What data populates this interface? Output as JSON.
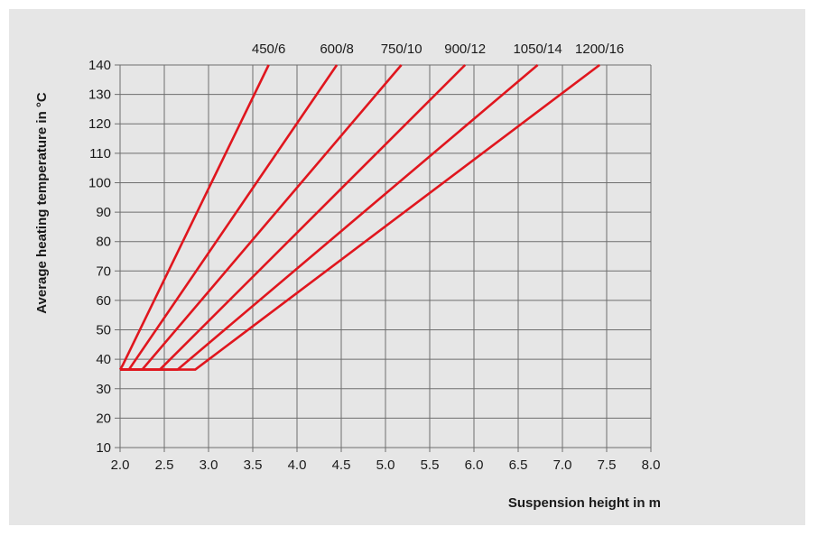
{
  "chart_data": {
    "type": "line",
    "title": "",
    "xlabel": "Suspension height in m",
    "ylabel": "Average heating temperature in °C",
    "xlim": [
      2.0,
      8.0
    ],
    "ylim": [
      10,
      140
    ],
    "x_ticks": [
      "2.0",
      "2.5",
      "3.0",
      "3.5",
      "4.0",
      "4.5",
      "5.0",
      "5.5",
      "6.0",
      "6.5",
      "7.0",
      "7.5",
      "8.0"
    ],
    "y_ticks": [
      "10",
      "20",
      "30",
      "40",
      "50",
      "60",
      "70",
      "80",
      "90",
      "100",
      "110",
      "120",
      "130",
      "140"
    ],
    "grid": true,
    "legend": "series labels above the plot at each line's top end",
    "series_color": "#e0161e",
    "series": [
      {
        "name": "450/6",
        "points": [
          [
            2.0,
            36.5
          ],
          [
            2.03,
            38
          ],
          [
            3.68,
            140
          ]
        ]
      },
      {
        "name": "600/8",
        "points": [
          [
            2.0,
            36.5
          ],
          [
            2.1,
            36.5
          ],
          [
            4.45,
            140
          ]
        ]
      },
      {
        "name": "750/10",
        "points": [
          [
            2.0,
            36.5
          ],
          [
            2.25,
            36.5
          ],
          [
            5.18,
            140
          ]
        ]
      },
      {
        "name": "900/12",
        "points": [
          [
            2.0,
            36.5
          ],
          [
            2.45,
            36.5
          ],
          [
            5.9,
            140
          ]
        ]
      },
      {
        "name": "1050/14",
        "points": [
          [
            2.0,
            36.5
          ],
          [
            2.65,
            36.5
          ],
          [
            6.72,
            140
          ]
        ]
      },
      {
        "name": "1200/16",
        "points": [
          [
            2.0,
            36.5
          ],
          [
            2.85,
            36.5
          ],
          [
            7.42,
            140
          ]
        ]
      }
    ]
  }
}
